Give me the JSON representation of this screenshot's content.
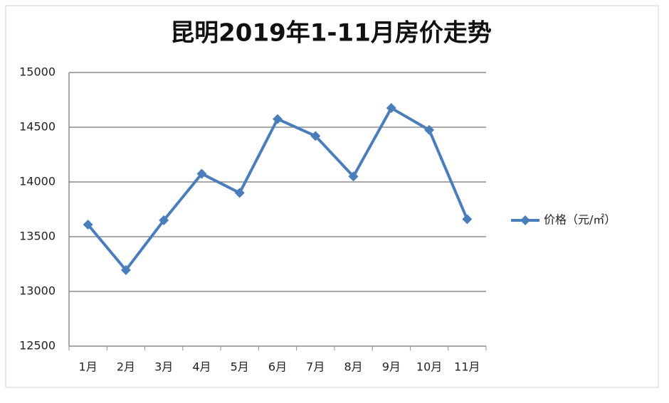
{
  "chart_data": {
    "type": "line",
    "title": "昆明2019年1-11月房价走势",
    "categories": [
      "1月",
      "2月",
      "3月",
      "4月",
      "5月",
      "6月",
      "7月",
      "8月",
      "9月",
      "10月",
      "11月"
    ],
    "series": [
      {
        "name": "价格（元/㎡）",
        "color": "#4a7ebb",
        "values": [
          13610,
          13195,
          13650,
          14075,
          13900,
          14575,
          14420,
          14050,
          14675,
          14475,
          13660
        ]
      }
    ],
    "ylim": [
      12500,
      15000
    ],
    "yticks": [
      12500,
      13000,
      13500,
      14000,
      14500,
      15000
    ],
    "grid": true,
    "legend": "right"
  }
}
